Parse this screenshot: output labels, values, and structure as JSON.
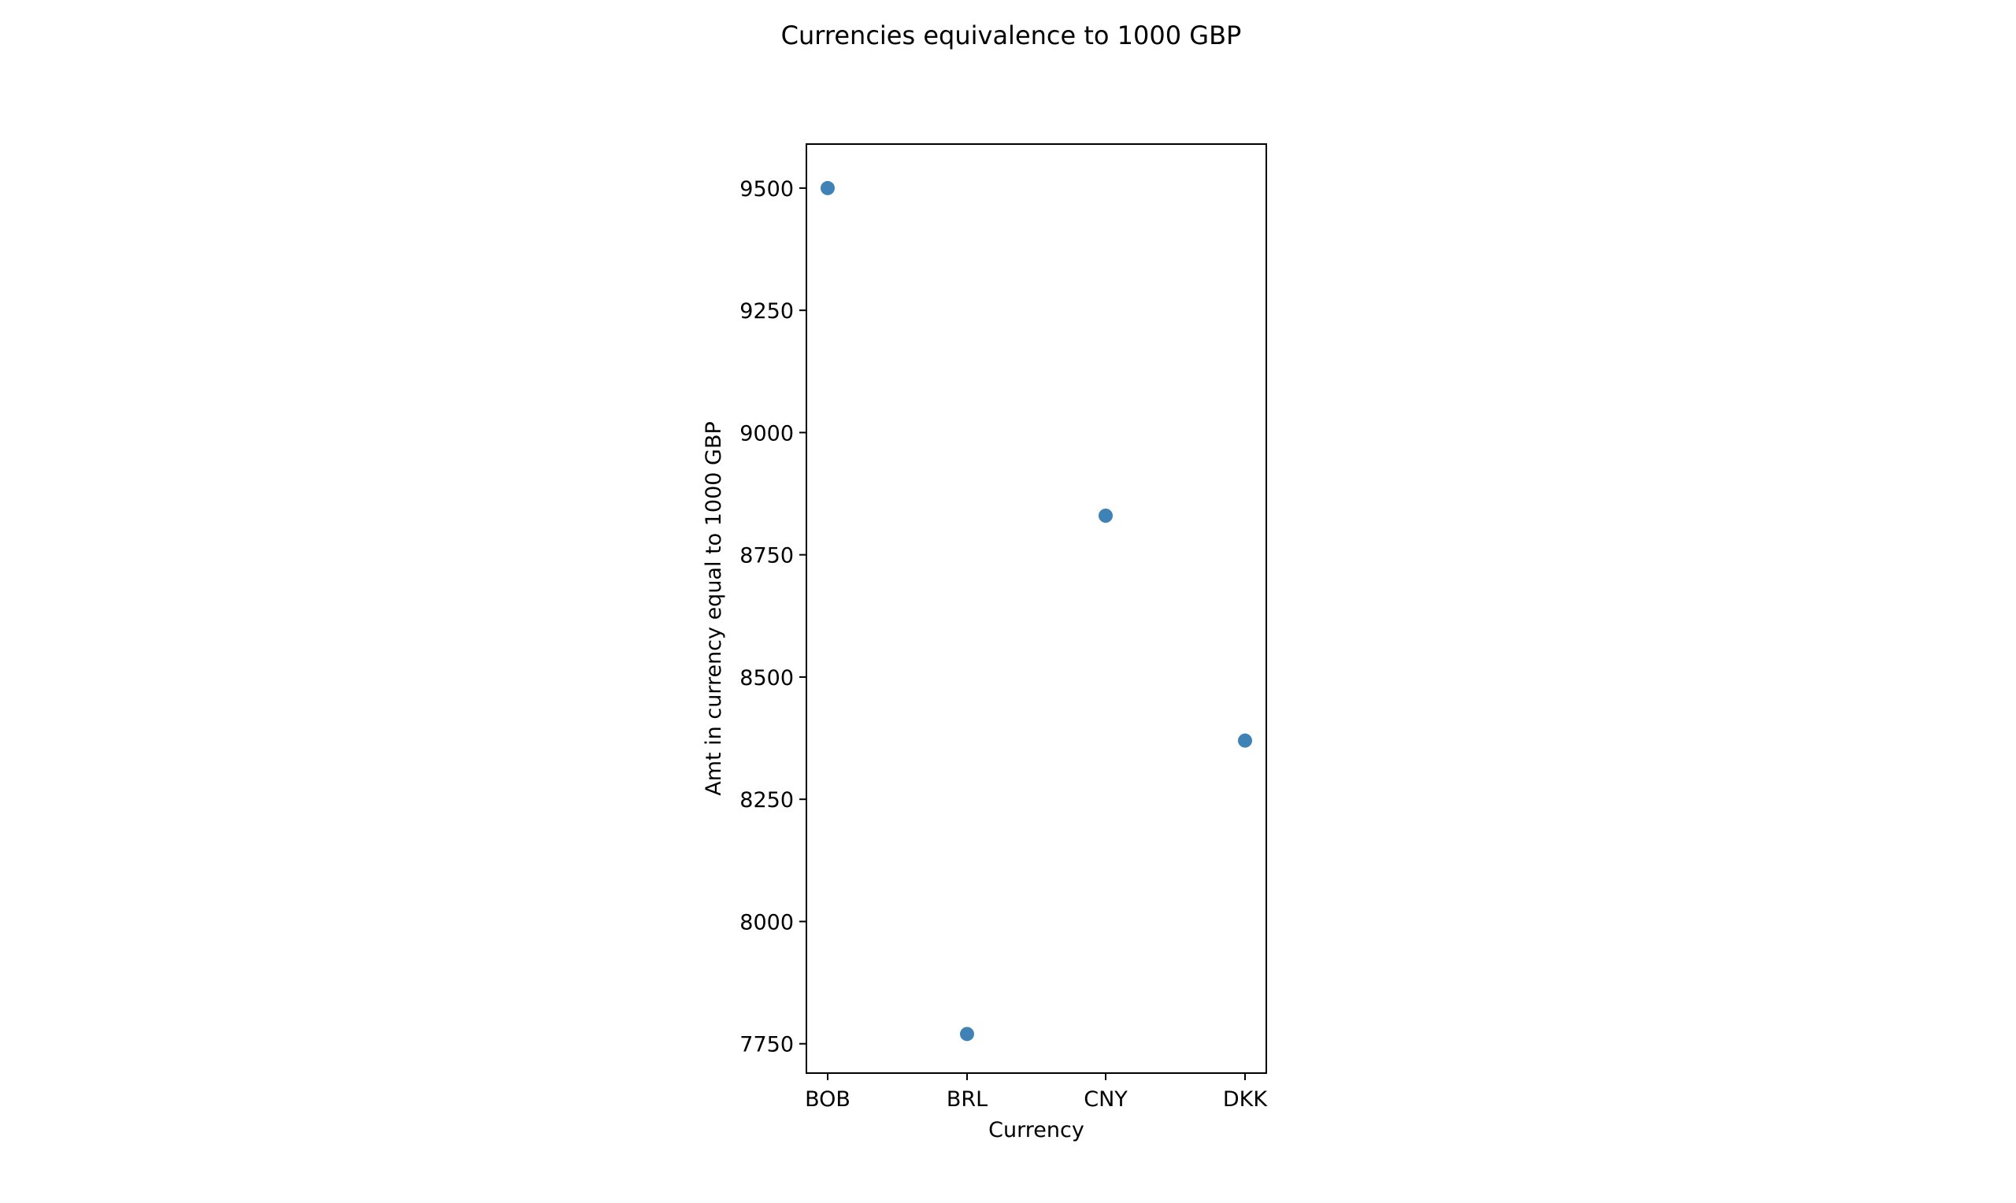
{
  "chart_data": {
    "type": "scatter",
    "title": "Currencies equivalence to 1000 GBP",
    "xlabel": "Currency",
    "ylabel": "Amt in currency equal to 1000 GBP",
    "categories": [
      "BOB",
      "BRL",
      "CNY",
      "DKK"
    ],
    "values": [
      9500,
      7770,
      8830,
      8370
    ],
    "ylim": [
      7690,
      9590
    ],
    "yticks": [
      7750,
      8000,
      8250,
      8500,
      8750,
      9000,
      9250,
      9500
    ],
    "grid": false,
    "marker_color": "#3f83b6"
  }
}
